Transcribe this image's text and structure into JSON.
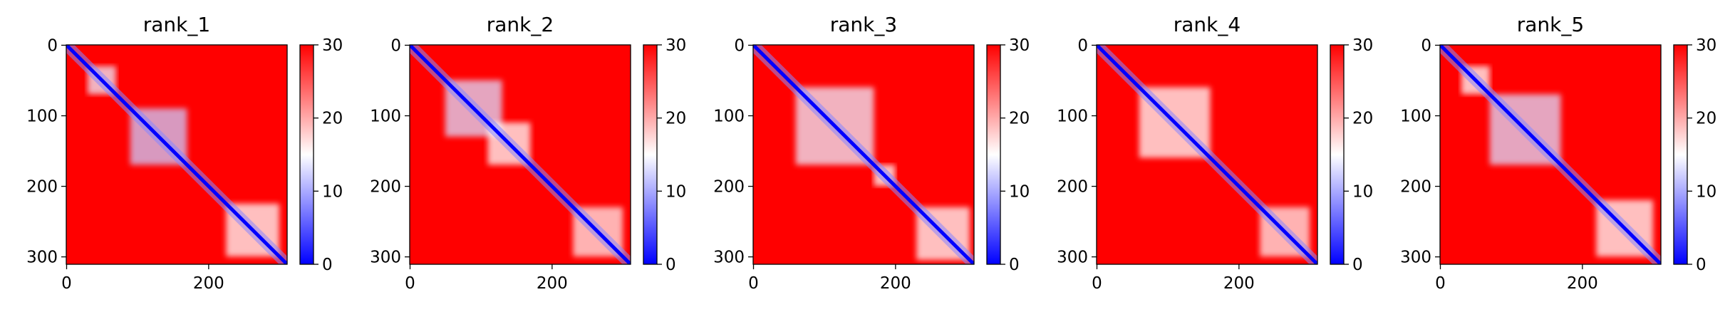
{
  "chart_data": [
    {
      "type": "heatmap",
      "title": "rank_1",
      "x_ticks": [
        "0",
        "200"
      ],
      "y_ticks": [
        "0",
        "100",
        "200",
        "300"
      ],
      "colorbar_ticks": [
        "0",
        "10",
        "20",
        "30"
      ],
      "colorbar_range": [
        0,
        30
      ],
      "colormap": [
        "#0000ff",
        "#ffffff",
        "#ff0000"
      ],
      "n_residues": 311,
      "low_value_regions": [
        {
          "x_range": [
            30,
            70
          ],
          "y_range": [
            30,
            70
          ],
          "value": 14
        },
        {
          "x_range": [
            90,
            170
          ],
          "y_range": [
            90,
            170
          ],
          "value": 12
        },
        {
          "x_range": [
            225,
            300
          ],
          "y_range": [
            225,
            300
          ],
          "value": 15
        }
      ]
    },
    {
      "type": "heatmap",
      "title": "rank_2",
      "x_ticks": [
        "0",
        "200"
      ],
      "y_ticks": [
        "0",
        "100",
        "200",
        "300"
      ],
      "colorbar_ticks": [
        "0",
        "10",
        "20",
        "30"
      ],
      "colorbar_range": [
        0,
        30
      ],
      "colormap": [
        "#0000ff",
        "#ffffff",
        "#ff0000"
      ],
      "n_residues": 311,
      "low_value_regions": [
        {
          "x_range": [
            50,
            130
          ],
          "y_range": [
            50,
            130
          ],
          "value": 13
        },
        {
          "x_range": [
            110,
            170
          ],
          "y_range": [
            110,
            170
          ],
          "value": 15
        },
        {
          "x_range": [
            230,
            300
          ],
          "y_range": [
            230,
            300
          ],
          "value": 16
        }
      ]
    },
    {
      "type": "heatmap",
      "title": "rank_3",
      "x_ticks": [
        "0",
        "200"
      ],
      "y_ticks": [
        "0",
        "100",
        "200",
        "300"
      ],
      "colorbar_ticks": [
        "0",
        "10",
        "20",
        "30"
      ],
      "colorbar_range": [
        0,
        30
      ],
      "colormap": [
        "#0000ff",
        "#ffffff",
        "#ff0000"
      ],
      "n_residues": 311,
      "low_value_regions": [
        {
          "x_range": [
            60,
            170
          ],
          "y_range": [
            60,
            170
          ],
          "value": 14
        },
        {
          "x_range": [
            170,
            200
          ],
          "y_range": [
            170,
            200
          ],
          "value": 15
        },
        {
          "x_range": [
            230,
            305
          ],
          "y_range": [
            230,
            305
          ],
          "value": 15
        }
      ]
    },
    {
      "type": "heatmap",
      "title": "rank_4",
      "x_ticks": [
        "0",
        "200"
      ],
      "y_ticks": [
        "0",
        "100",
        "200",
        "300"
      ],
      "colorbar_ticks": [
        "0",
        "10",
        "20",
        "30"
      ],
      "colorbar_range": [
        0,
        30
      ],
      "colormap": [
        "#0000ff",
        "#ffffff",
        "#ff0000"
      ],
      "n_residues": 311,
      "low_value_regions": [
        {
          "x_range": [
            60,
            160
          ],
          "y_range": [
            60,
            160
          ],
          "value": 15
        },
        {
          "x_range": [
            230,
            300
          ],
          "y_range": [
            230,
            300
          ],
          "value": 16
        }
      ]
    },
    {
      "type": "heatmap",
      "title": "rank_5",
      "x_ticks": [
        "0",
        "200"
      ],
      "y_ticks": [
        "0",
        "100",
        "200",
        "300"
      ],
      "colorbar_ticks": [
        "0",
        "10",
        "20",
        "30"
      ],
      "colorbar_range": [
        0,
        30
      ],
      "colormap": [
        "#0000ff",
        "#ffffff",
        "#ff0000"
      ],
      "n_residues": 311,
      "low_value_regions": [
        {
          "x_range": [
            30,
            70
          ],
          "y_range": [
            30,
            70
          ],
          "value": 15
        },
        {
          "x_range": [
            70,
            170
          ],
          "y_range": [
            70,
            170
          ],
          "value": 13
        },
        {
          "x_range": [
            220,
            300
          ],
          "y_range": [
            220,
            300
          ],
          "value": 15
        }
      ]
    }
  ]
}
